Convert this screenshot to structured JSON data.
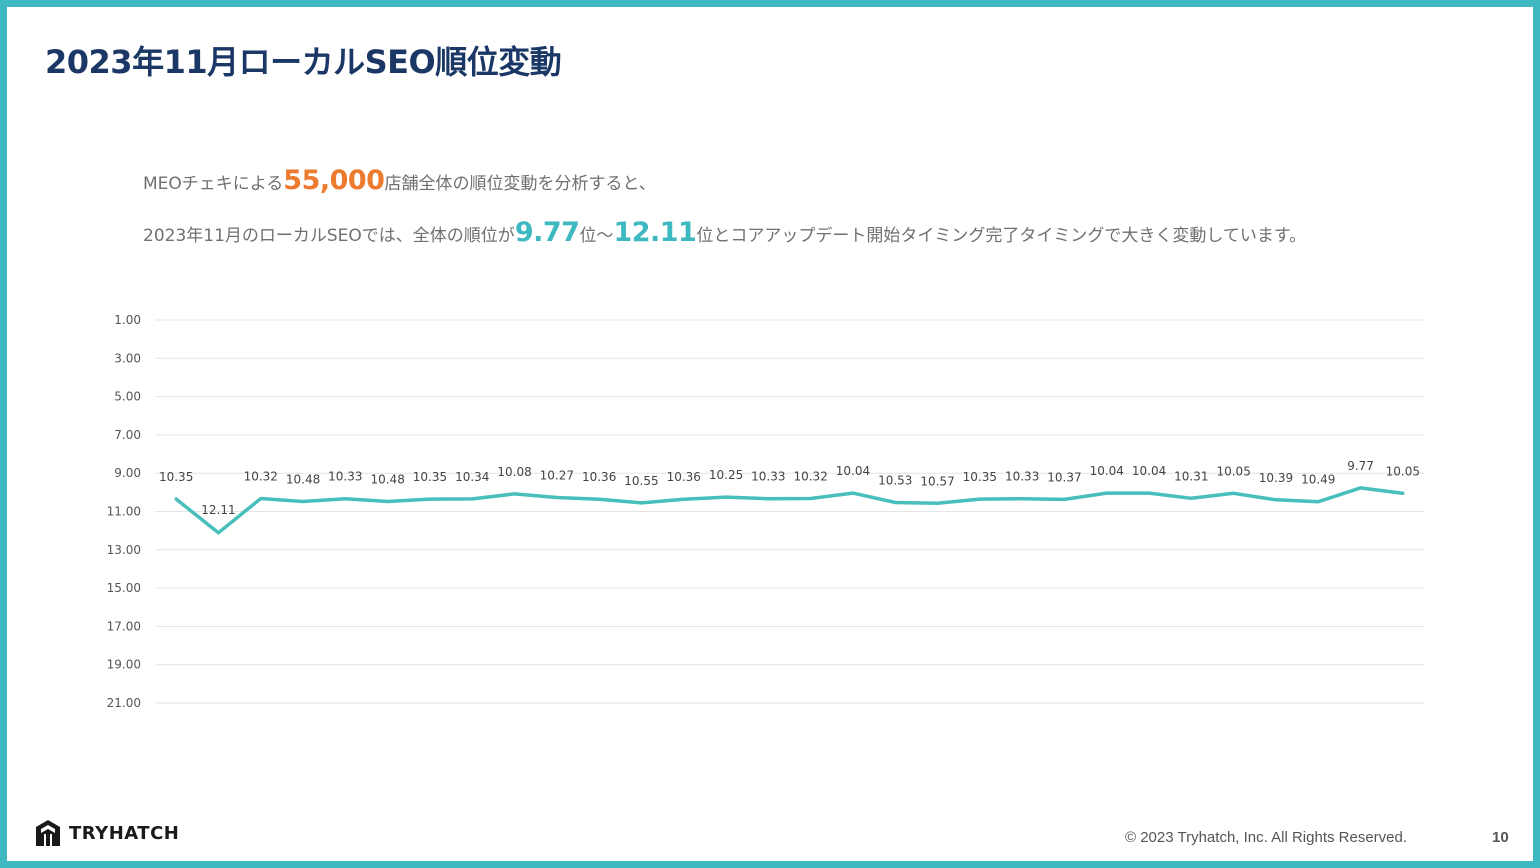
{
  "title": "2023年11月ローカルSEO順位変動",
  "lead": {
    "line1_before": "MEOチェキによる",
    "line1_highlight": "55,000",
    "line1_after": "店舗全体の順位変動を分析すると、",
    "line2_before": "2023年11月のローカルSEOでは、全体の順位が",
    "line2_highlight_min": "9.77",
    "line2_middle": "位〜",
    "line2_highlight_max": "12.11",
    "line2_after": "位とコアアップデート開始タイミング完了タイミングで大きく変動しています。"
  },
  "colors": {
    "line": "#48bfbc",
    "title": "#1b3766",
    "highlight_orange": "#ec7a2f",
    "highlight_teal": "#3eb8c1",
    "frame": "#3eb8c1"
  },
  "chart_data": {
    "type": "line",
    "y_reversed": true,
    "ylim": [
      1,
      21
    ],
    "y_ticks": [
      "1.00",
      "3.00",
      "5.00",
      "7.00",
      "9.00",
      "11.00",
      "13.00",
      "15.00",
      "17.00",
      "19.00",
      "21.00"
    ],
    "grid": true,
    "series": [
      {
        "values": [
          10.35,
          12.11,
          10.32,
          10.48,
          10.33,
          10.48,
          10.35,
          10.34,
          10.08,
          10.27,
          10.36,
          10.55,
          10.36,
          10.25,
          10.33,
          10.32,
          10.04,
          10.53,
          10.57,
          10.35,
          10.33,
          10.37,
          10.04,
          10.04,
          10.31,
          10.05,
          10.39,
          10.49,
          9.77,
          10.05
        ],
        "labels": [
          "10.35",
          "12.11",
          "10.32",
          "10.48",
          "10.33",
          "10.48",
          "10.35",
          "10.34",
          "10.08",
          "10.27",
          "10.36",
          "10.55",
          "10.36",
          "10.25",
          "10.33",
          "10.32",
          "10.04",
          "10.53",
          "10.57",
          "10.35",
          "10.33",
          "10.37",
          "10.04",
          "10.04",
          "10.31",
          "10.05",
          "10.39",
          "10.49",
          "9.77",
          "10.05"
        ]
      }
    ]
  },
  "footer": {
    "logo_text": "TRYHATCH",
    "logo_icon": "tryhatch-logo-icon",
    "copyright": "© 2023 Tryhatch, Inc. All Rights Reserved.",
    "page_number": "10"
  }
}
